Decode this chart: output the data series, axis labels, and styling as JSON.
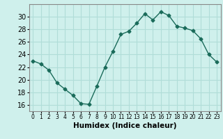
{
  "x": [
    0,
    1,
    2,
    3,
    4,
    5,
    6,
    7,
    8,
    9,
    10,
    11,
    12,
    13,
    14,
    15,
    16,
    17,
    18,
    19,
    20,
    21,
    22,
    23
  ],
  "y": [
    23,
    22.5,
    21.5,
    19.5,
    18.5,
    17.5,
    16.2,
    16.1,
    19.0,
    22.0,
    24.5,
    27.2,
    27.7,
    29.0,
    30.5,
    29.5,
    30.8,
    30.2,
    28.5,
    28.2,
    27.8,
    26.5,
    24.0,
    22.8
  ],
  "line_color": "#1a6b5a",
  "marker": "D",
  "marker_size": 2.5,
  "bg_color": "#cff0ec",
  "grid_color": "#b0ddd8",
  "xlabel": "Humidex (Indice chaleur)",
  "ylim": [
    15,
    32
  ],
  "xlim": [
    -0.5,
    23.5
  ],
  "yticks": [
    16,
    18,
    20,
    22,
    24,
    26,
    28,
    30
  ],
  "xticks": [
    0,
    1,
    2,
    3,
    4,
    5,
    6,
    7,
    8,
    9,
    10,
    11,
    12,
    13,
    14,
    15,
    16,
    17,
    18,
    19,
    20,
    21,
    22,
    23
  ],
  "xlabel_fontsize": 7.5,
  "ytick_fontsize": 7,
  "xtick_fontsize": 5.5,
  "line_width": 1.0
}
